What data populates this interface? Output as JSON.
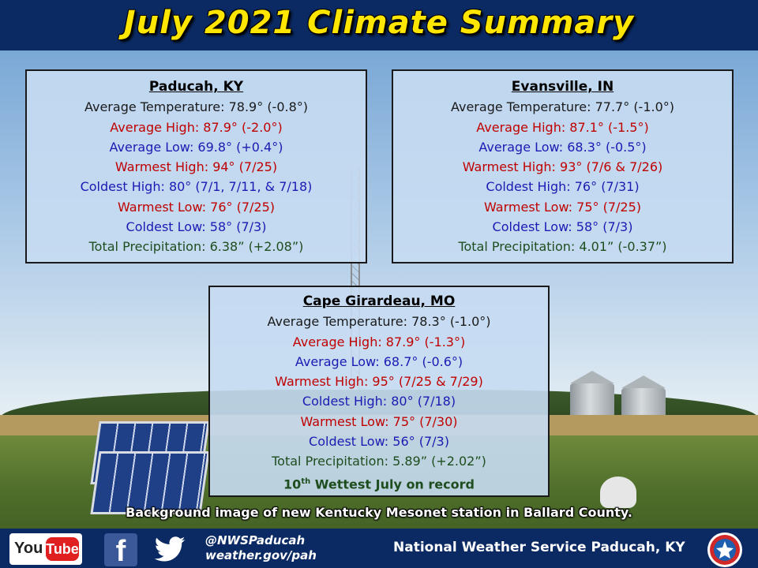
{
  "title": "July 2021 Climate Summary",
  "stations": {
    "paducah": {
      "name": "Paducah, KY",
      "avg_temp": "Average Temperature: 78.9° (-0.8°)",
      "avg_high": "Average High: 87.9° (-2.0°)",
      "avg_low": "Average Low: 69.8° (+0.4°)",
      "warmest_high": "Warmest High: 94° (7/25)",
      "coldest_high": "Coldest High: 80° (7/1, 7/11, & 7/18)",
      "warmest_low": "Warmest Low: 76° (7/25)",
      "coldest_low": "Coldest Low: 58° (7/3)",
      "precip": "Total Precipitation: 6.38” (+2.08”)"
    },
    "evansville": {
      "name": "Evansville, IN",
      "avg_temp": "Average Temperature: 77.7° (-1.0°)",
      "avg_high": "Average High: 87.1° (-1.5°)",
      "avg_low": "Average Low: 68.3° (-0.5°)",
      "warmest_high": "Warmest High: 93° (7/6 & 7/26)",
      "coldest_high": "Coldest High: 76° (7/31)",
      "warmest_low": "Warmest Low: 75° (7/25)",
      "coldest_low": "Coldest Low: 58° (7/3)",
      "precip": "Total Precipitation: 4.01” (-0.37”)"
    },
    "cape": {
      "name": "Cape Girardeau, MO",
      "avg_temp": "Average Temperature: 78.3° (-1.0°)",
      "avg_high": "Average High: 87.9° (-1.3°)",
      "avg_low": "Average Low: 68.7° (-0.6°)",
      "warmest_high": "Warmest High: 95° (7/25 & 7/29)",
      "coldest_high": "Coldest High: 80° (7/18)",
      "warmest_low": "Warmest Low: 75° (7/30)",
      "coldest_low": "Coldest Low: 56° (7/3)",
      "precip": "Total Precipitation: 5.89” (+2.02”)",
      "note_ordinal": "10",
      "note_suffix": "th",
      "note_rest": " Wettest July on record"
    }
  },
  "caption": "Background image of new Kentucky Mesonet station in Ballard County.",
  "footer": {
    "youtube_you": "You",
    "youtube_tube": "Tube",
    "facebook": "f",
    "handle": "@NWSPaducah",
    "website": "weather.gov/pah",
    "office": "National Weather Service Paducah, KY"
  },
  "colors": {
    "banner": "#0b2a63",
    "title": "#ffe600",
    "red": "#c00000",
    "blue": "#1b1bb3",
    "green": "#1e4d1e"
  },
  "icons": [
    "youtube-icon",
    "facebook-icon",
    "twitter-icon",
    "nws-logo-icon"
  ]
}
